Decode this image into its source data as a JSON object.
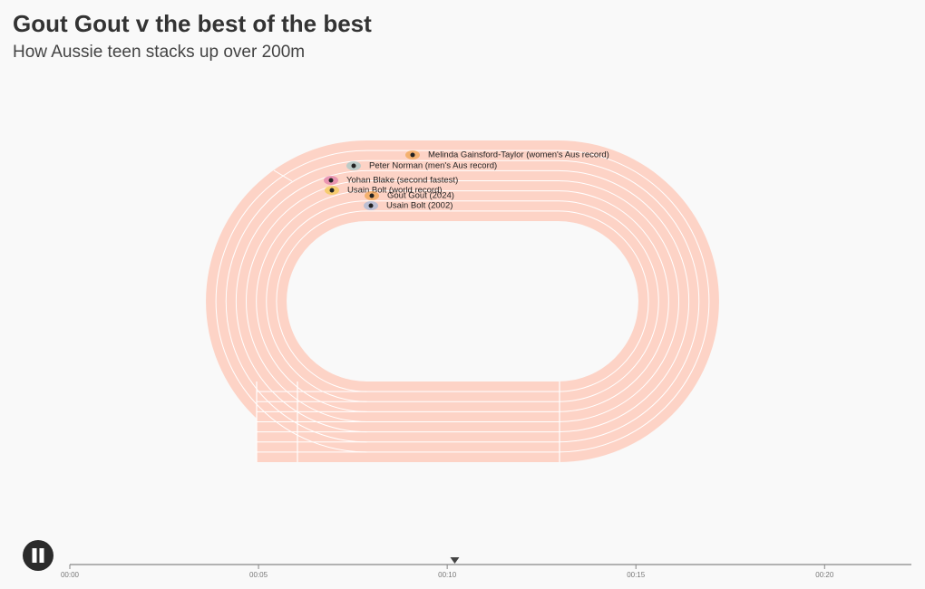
{
  "header": {
    "title": "Gout Gout v the best of the best",
    "subtitle": "How Aussie teen stacks up over 200m"
  },
  "runners": [
    {
      "label": "Melinda Gainsford-Taylor (women's Aus record)",
      "color": "#f0a24a"
    },
    {
      "label": "Peter Norman (men's Aus record)",
      "color": "#9fc8c8"
    },
    {
      "label": "Yohan Blake (second fastest)",
      "color": "#e07aa8"
    },
    {
      "label": "Usain Bolt (world record)",
      "color": "#f2c94c"
    },
    {
      "label": "Gout Gout (2024)",
      "color": "#f0a24a"
    },
    {
      "label": "Usain Bolt (2002)",
      "color": "#9fb6d8"
    }
  ],
  "timeline": {
    "domain": [
      0,
      22.3
    ],
    "playhead": 10.2,
    "ticks": [
      {
        "value": 0,
        "label": "00:00"
      },
      {
        "value": 5,
        "label": "00:05"
      },
      {
        "value": 10,
        "label": "00:10"
      },
      {
        "value": 15,
        "label": "00:15"
      },
      {
        "value": 20,
        "label": "00:20"
      }
    ]
  }
}
